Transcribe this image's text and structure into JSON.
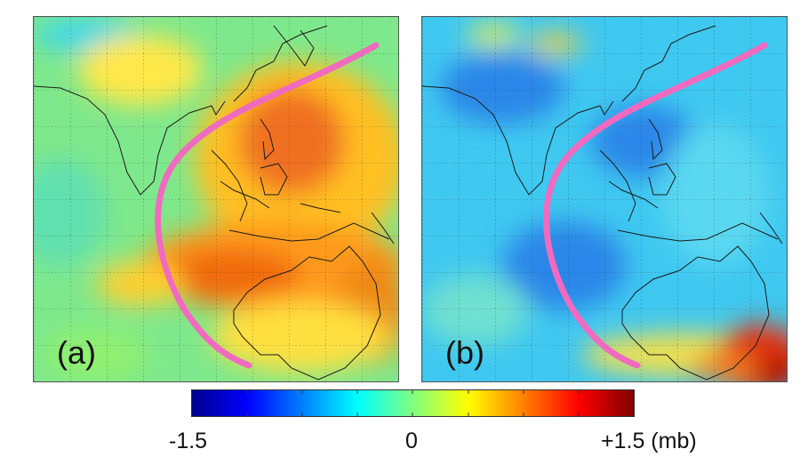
{
  "panels": [
    {
      "label": "(a)",
      "anomaly": "positive",
      "dominant_color": "#f0a020"
    },
    {
      "label": "(b)",
      "anomaly": "negative",
      "dominant_color": "#3aa8ee"
    }
  ],
  "colorbar": {
    "min_label": "-1.5",
    "mid_label": "0",
    "max_label": "+1.5 (mb)",
    "min": -1.5,
    "max": 1.5,
    "colors": [
      "#00008f",
      "#0000ff",
      "#0080ff",
      "#00ffff",
      "#80ff80",
      "#ffff00",
      "#ff8000",
      "#ff0000",
      "#800000"
    ]
  },
  "overlay": {
    "curve_color": "#f06bbf"
  },
  "map": {
    "coastline_color": "#1a1a1a",
    "grid": "dotted"
  }
}
